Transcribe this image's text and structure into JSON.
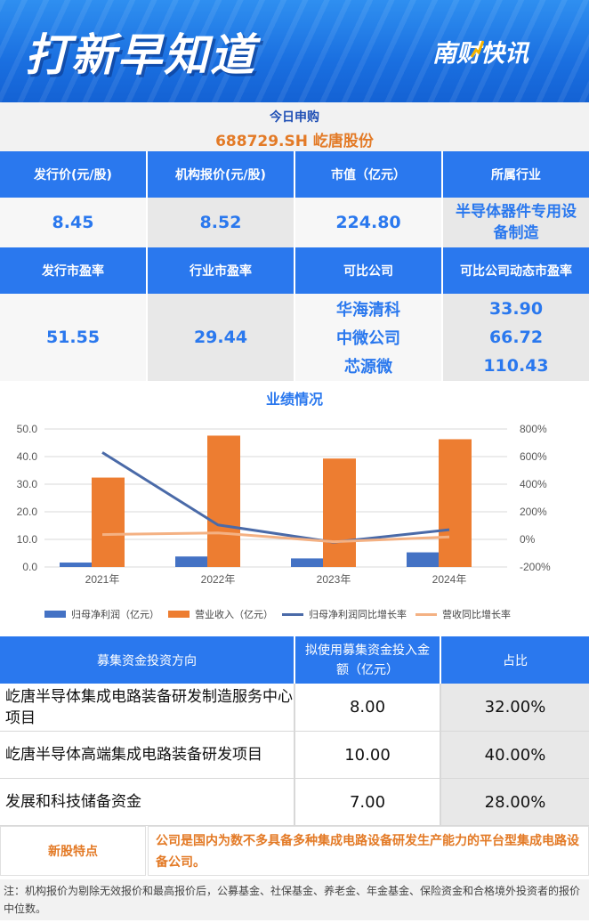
{
  "header": {
    "title": "打新早知道",
    "brand": "南财快讯"
  },
  "today": {
    "label": "今日申购",
    "stock": "688729.SH  屹唐股份"
  },
  "info_row1": {
    "headers": [
      "发行价(元/股)",
      "机构报价(元/股)",
      "市值（亿元）",
      "所属行业"
    ],
    "values": [
      "8.45",
      "8.52",
      "224.80",
      "半导体器件专用设备制造"
    ]
  },
  "info_row2": {
    "headers": [
      "发行市盈率",
      "行业市盈率",
      "可比公司",
      "可比公司动态市盈率"
    ],
    "issue_pe": "51.55",
    "industry_pe": "29.44",
    "comparables": [
      {
        "name": "华海清科",
        "pe": "33.90"
      },
      {
        "name": "中微公司",
        "pe": "66.72"
      },
      {
        "name": "芯源微",
        "pe": "110.43"
      }
    ]
  },
  "performance": {
    "title": "业绩情况"
  },
  "chart_data": {
    "type": "bar",
    "categories": [
      "2021年",
      "2022年",
      "2023年",
      "2024年"
    ],
    "series": [
      {
        "name": "归母净利润（亿元）",
        "type": "bar",
        "axis": "left",
        "color": "#4472c4",
        "values": [
          1.6,
          3.8,
          3.1,
          5.3
        ]
      },
      {
        "name": "营业收入（亿元）",
        "type": "bar",
        "axis": "left",
        "color": "#ed7d31",
        "values": [
          32.4,
          47.6,
          39.3,
          46.3
        ]
      },
      {
        "name": "归母净利润同比增长率",
        "type": "line",
        "axis": "right",
        "color": "#4a6aa8",
        "values": [
          630,
          105,
          -20,
          70
        ]
      },
      {
        "name": "营收同比增长率",
        "type": "line",
        "axis": "right",
        "color": "#f4b183",
        "values": [
          35,
          47,
          -17,
          18
        ]
      }
    ],
    "left_axis": {
      "ticks": [
        "50.0",
        "40.0",
        "30.0",
        "20.0",
        "10.0",
        "0.0"
      ],
      "ylim": [
        0,
        50
      ]
    },
    "right_axis": {
      "ticks": [
        "800%",
        "600%",
        "400%",
        "200%",
        "0%",
        "-200%"
      ],
      "ylim": [
        -200,
        800
      ]
    },
    "grid": true,
    "legend": "bottom"
  },
  "fund": {
    "headers": [
      "募集资金投资方向",
      "拟使用募集资金投入金额（亿元）",
      "占比"
    ],
    "rows": [
      {
        "name": "屹唐半导体集成电路装备研发制造服务中心项目",
        "amount": "8.00",
        "pct": "32.00%"
      },
      {
        "name": "屹唐半导体高端集成电路装备研发项目",
        "amount": "10.00",
        "pct": "40.00%"
      },
      {
        "name": "发展和科技储备资金",
        "amount": "7.00",
        "pct": "28.00%"
      }
    ]
  },
  "feature": {
    "label": "新股特点",
    "text": "公司是国内为数不多具备多种集成电路设备研发生产能力的平台型集成电路设备公司。"
  },
  "note": "注：机构报价为剔除无效报价和最高报价后，公募基金、社保基金、养老金、年金基金、保险资金和合格境外投资者的报价中位数。"
}
